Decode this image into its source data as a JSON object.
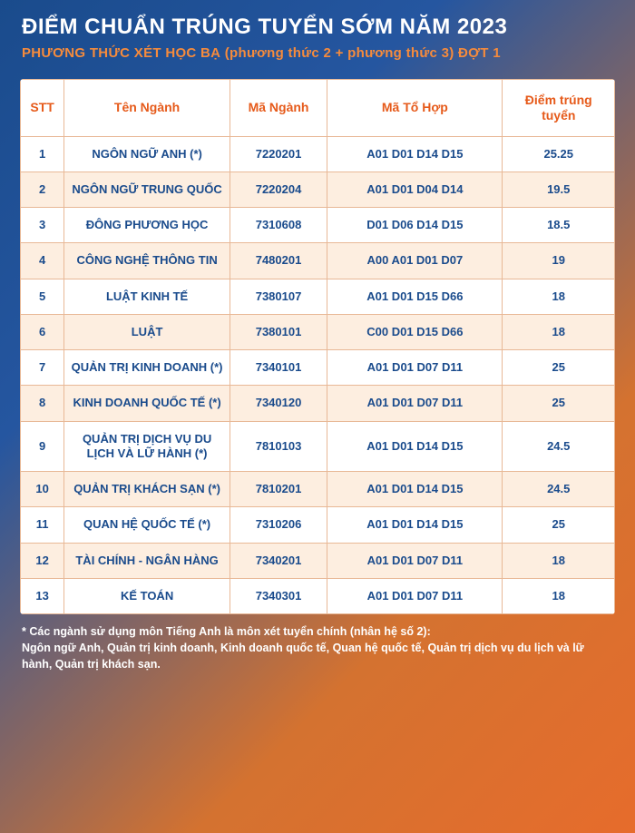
{
  "header": {
    "title": "ĐIỂM CHUẨN TRÚNG TUYỂN SỚM NĂM 2023",
    "subtitle": "PHƯƠNG THỨC XÉT HỌC BẠ (phương thức 2 + phương thức 3) ĐỢT 1"
  },
  "table": {
    "columns": {
      "stt": "STT",
      "name": "Tên Ngành",
      "code": "Mã Ngành",
      "combo": "Mã Tổ Hợp",
      "score": "Điểm trúng tuyển"
    },
    "rows": [
      {
        "stt": "1",
        "name": "NGÔN NGỮ ANH (*)",
        "code": "7220201",
        "combo": "A01 D01 D14 D15",
        "score": "25.25"
      },
      {
        "stt": "2",
        "name": "NGÔN NGỮ TRUNG QUỐC",
        "code": "7220204",
        "combo": "A01 D01 D04 D14",
        "score": "19.5"
      },
      {
        "stt": "3",
        "name": "ĐÔNG PHƯƠNG HỌC",
        "code": "7310608",
        "combo": "D01 D06 D14 D15",
        "score": "18.5"
      },
      {
        "stt": "4",
        "name": "CÔNG NGHỆ THÔNG TIN",
        "code": "7480201",
        "combo": "A00 A01 D01 D07",
        "score": "19"
      },
      {
        "stt": "5",
        "name": "LUẬT KINH TẾ",
        "code": "7380107",
        "combo": "A01 D01 D15 D66",
        "score": "18"
      },
      {
        "stt": "6",
        "name": "LUẬT",
        "code": "7380101",
        "combo": "C00 D01 D15 D66",
        "score": "18"
      },
      {
        "stt": "7",
        "name": "QUẢN TRỊ KINH DOANH (*)",
        "code": "7340101",
        "combo": "A01 D01 D07 D11",
        "score": "25"
      },
      {
        "stt": "8",
        "name": "KINH DOANH QUỐC TẾ (*)",
        "code": "7340120",
        "combo": "A01 D01 D07 D11",
        "score": "25"
      },
      {
        "stt": "9",
        "name": "QUẢN TRỊ DỊCH VỤ DU LỊCH VÀ LỮ HÀNH (*)",
        "code": "7810103",
        "combo": "A01 D01 D14 D15",
        "score": "24.5"
      },
      {
        "stt": "10",
        "name": "QUẢN TRỊ KHÁCH SẠN (*)",
        "code": "7810201",
        "combo": "A01 D01 D14 D15",
        "score": "24.5"
      },
      {
        "stt": "11",
        "name": "QUAN HỆ QUỐC TẾ (*)",
        "code": "7310206",
        "combo": "A01 D01 D14 D15",
        "score": "25"
      },
      {
        "stt": "12",
        "name": "TÀI CHÍNH - NGÂN HÀNG",
        "code": "7340201",
        "combo": "A01 D01 D07 D11",
        "score": "18"
      },
      {
        "stt": "13",
        "name": "KẾ TOÁN",
        "code": "7340301",
        "combo": "A01 D01 D07 D11",
        "score": "18"
      }
    ]
  },
  "footer": {
    "note1": "* Các ngành sử dụng môn Tiếng Anh là môn xét tuyển chính (nhân hệ số 2):",
    "note2": "Ngôn ngữ Anh, Quản trị kinh doanh, Kinh doanh quốc tế, Quan hệ quốc tế, Quản trị dịch vụ du lịch và lữ hành, Quản trị khách sạn."
  },
  "styles": {
    "background_gradient": [
      "#1a4b8c",
      "#2556a0",
      "#d47230",
      "#e66c2c"
    ],
    "header_text_color": "#ffffff",
    "subtitle_color": "#f68b3c",
    "table_header_color": "#e65a1a",
    "cell_text_color": "#1a4b8c",
    "border_color": "#e8b896",
    "row_even_bg": "#fdeee0",
    "row_odd_bg": "#ffffff",
    "title_fontsize": 24,
    "subtitle_fontsize": 15,
    "th_fontsize": 14,
    "td_fontsize": 13,
    "footer_fontsize": 12.5,
    "col_widths": {
      "stt": 45,
      "name": 170,
      "code": 100,
      "combo": 180,
      "score": 115
    }
  }
}
